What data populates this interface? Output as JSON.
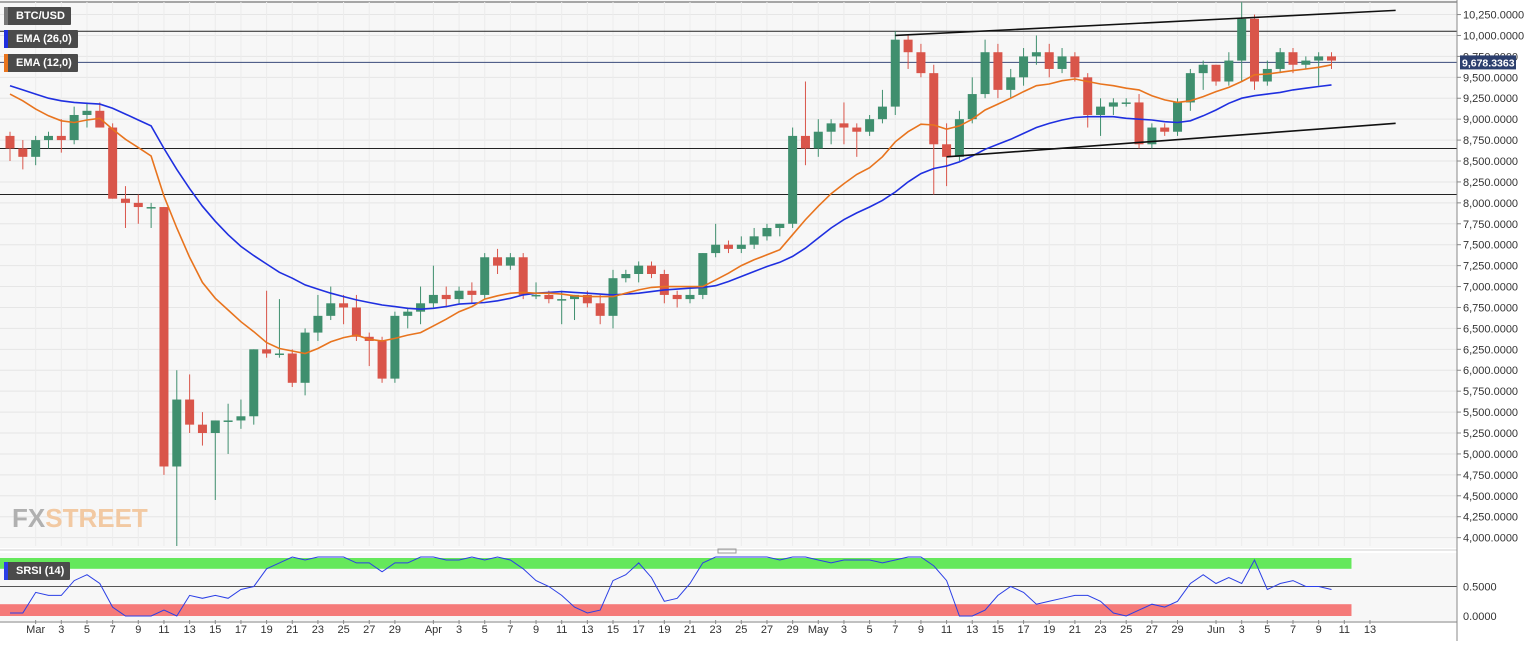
{
  "instrument": "BTC/USD",
  "indicators": {
    "ema_slow_label": "EMA (26,0)",
    "ema_fast_label": "EMA (12,0)",
    "srsi_label": "SRSI (14)",
    "ema_slow_color": "#1f2fe0",
    "ema_fast_color": "#e8741e"
  },
  "last_price_label": "9,678.3363",
  "watermark": {
    "fx": "FX",
    "street": "STREET"
  },
  "colors": {
    "bull": "#3f8f6e",
    "bear": "#d9554a",
    "srsi_overbought": "#65e85b",
    "srsi_oversold": "#f57a79",
    "srsi_line": "#2b3fe6",
    "price_tag": "#2c3f6e"
  },
  "chart_data": {
    "type": "candlestick",
    "y_axis": {
      "min": 3900,
      "max": 10400,
      "ticks": [
        4000,
        4250,
        4500,
        4750,
        5000,
        5250,
        5500,
        5750,
        6000,
        6250,
        6500,
        6750,
        7000,
        7250,
        7500,
        7750,
        8000,
        8250,
        8500,
        8750,
        9000,
        9250,
        9500,
        9750,
        10000,
        10250
      ],
      "tick_labels": [
        "4,000.0000",
        "4,250.0000",
        "4,500.0000",
        "4,750.0000",
        "5,000.0000",
        "5,250.0000",
        "5,500.0000",
        "5,750.0000",
        "6,000.0000",
        "6,250.0000",
        "6,500.0000",
        "6,750.0000",
        "7,000.0000",
        "7,250.0000",
        "7,500.0000",
        "7,750.0000",
        "8,000.0000",
        "8,250.0000",
        "8,500.0000",
        "8,750.0000",
        "9,000.0000",
        "9,250.0000",
        "9,500.0000",
        "9,750.0000",
        "10,000.0000",
        "10,250.0000"
      ]
    },
    "x_axis": {
      "first_date": "2020-02-28",
      "labels": [
        {
          "day": 2,
          "text": "Mar"
        },
        {
          "day": 4,
          "text": "3"
        },
        {
          "day": 6,
          "text": "5"
        },
        {
          "day": 8,
          "text": "7"
        },
        {
          "day": 10,
          "text": "9"
        },
        {
          "day": 12,
          "text": "11"
        },
        {
          "day": 14,
          "text": "13"
        },
        {
          "day": 16,
          "text": "15"
        },
        {
          "day": 18,
          "text": "17"
        },
        {
          "day": 20,
          "text": "19"
        },
        {
          "day": 22,
          "text": "21"
        },
        {
          "day": 24,
          "text": "23"
        },
        {
          "day": 26,
          "text": "25"
        },
        {
          "day": 28,
          "text": "27"
        },
        {
          "day": 30,
          "text": "29"
        },
        {
          "day": 33,
          "text": "Apr"
        },
        {
          "day": 35,
          "text": "3"
        },
        {
          "day": 37,
          "text": "5"
        },
        {
          "day": 39,
          "text": "7"
        },
        {
          "day": 41,
          "text": "9"
        },
        {
          "day": 43,
          "text": "11"
        },
        {
          "day": 45,
          "text": "13"
        },
        {
          "day": 47,
          "text": "15"
        },
        {
          "day": 49,
          "text": "17"
        },
        {
          "day": 51,
          "text": "19"
        },
        {
          "day": 53,
          "text": "21"
        },
        {
          "day": 55,
          "text": "23"
        },
        {
          "day": 57,
          "text": "25"
        },
        {
          "day": 59,
          "text": "27"
        },
        {
          "day": 61,
          "text": "29"
        },
        {
          "day": 63,
          "text": "May"
        },
        {
          "day": 65,
          "text": "3"
        },
        {
          "day": 67,
          "text": "5"
        },
        {
          "day": 69,
          "text": "7"
        },
        {
          "day": 71,
          "text": "9"
        },
        {
          "day": 73,
          "text": "11"
        },
        {
          "day": 75,
          "text": "13"
        },
        {
          "day": 77,
          "text": "15"
        },
        {
          "day": 79,
          "text": "17"
        },
        {
          "day": 81,
          "text": "19"
        },
        {
          "day": 83,
          "text": "21"
        },
        {
          "day": 85,
          "text": "23"
        },
        {
          "day": 87,
          "text": "25"
        },
        {
          "day": 89,
          "text": "27"
        },
        {
          "day": 91,
          "text": "29"
        },
        {
          "day": 94,
          "text": "Jun"
        },
        {
          "day": 96,
          "text": "3"
        },
        {
          "day": 98,
          "text": "5"
        },
        {
          "day": 100,
          "text": "7"
        },
        {
          "day": 102,
          "text": "9"
        },
        {
          "day": 104,
          "text": "11"
        },
        {
          "day": 106,
          "text": "13"
        }
      ]
    },
    "candles": [
      [
        8800,
        8850,
        8500,
        8650
      ],
      [
        8650,
        8750,
        8400,
        8550
      ],
      [
        8550,
        8800,
        8450,
        8750
      ],
      [
        8750,
        8850,
        8650,
        8800
      ],
      [
        8800,
        9000,
        8600,
        8750
      ],
      [
        8750,
        9150,
        8700,
        9050
      ],
      [
        9050,
        9200,
        8900,
        9100
      ],
      [
        9100,
        9200,
        8900,
        8900
      ],
      [
        8900,
        8950,
        8050,
        8050
      ],
      [
        8050,
        8200,
        7700,
        8000
      ],
      [
        8000,
        8100,
        7750,
        7950
      ],
      [
        7950,
        8000,
        7700,
        7950
      ],
      [
        7950,
        7950,
        4750,
        4850
      ],
      [
        4850,
        6000,
        3900,
        5650
      ],
      [
        5650,
        5950,
        5250,
        5350
      ],
      [
        5350,
        5500,
        5100,
        5250
      ],
      [
        5250,
        5400,
        4450,
        5400
      ],
      [
        5400,
        5600,
        5000,
        5400
      ],
      [
        5400,
        5650,
        5300,
        5450
      ],
      [
        5450,
        6250,
        5350,
        6250
      ],
      [
        6250,
        6950,
        6150,
        6200
      ],
      [
        6200,
        6850,
        6150,
        6200
      ],
      [
        6200,
        6250,
        5800,
        5850
      ],
      [
        5850,
        6500,
        5700,
        6450
      ],
      [
        6450,
        6900,
        6350,
        6650
      ],
      [
        6650,
        7000,
        6600,
        6800
      ],
      [
        6800,
        6900,
        6550,
        6750
      ],
      [
        6750,
        6900,
        6350,
        6400
      ],
      [
        6400,
        6450,
        6050,
        6350
      ],
      [
        6350,
        6400,
        5850,
        5900
      ],
      [
        5900,
        6700,
        5850,
        6650
      ],
      [
        6650,
        6750,
        6500,
        6700
      ],
      [
        6700,
        7000,
        6550,
        6800
      ],
      [
        6800,
        7250,
        6750,
        6900
      ],
      [
        6900,
        7000,
        6750,
        6850
      ],
      [
        6850,
        7000,
        6800,
        6950
      ],
      [
        6950,
        7050,
        6800,
        6900
      ],
      [
        6900,
        7400,
        6850,
        7350
      ],
      [
        7350,
        7450,
        7150,
        7250
      ],
      [
        7250,
        7400,
        7200,
        7350
      ],
      [
        7350,
        7400,
        6850,
        6900
      ],
      [
        6900,
        7050,
        6850,
        6900
      ],
      [
        6900,
        6950,
        6800,
        6850
      ],
      [
        6850,
        6950,
        6550,
        6850
      ],
      [
        6850,
        6900,
        6600,
        6900
      ],
      [
        6900,
        6950,
        6750,
        6800
      ],
      [
        6800,
        6900,
        6550,
        6650
      ],
      [
        6650,
        7200,
        6500,
        7100
      ],
      [
        7100,
        7200,
        7050,
        7150
      ],
      [
        7150,
        7300,
        7050,
        7250
      ],
      [
        7250,
        7300,
        7100,
        7150
      ],
      [
        7150,
        7200,
        6800,
        6900
      ],
      [
        6900,
        6950,
        6750,
        6850
      ],
      [
        6850,
        7000,
        6800,
        6900
      ],
      [
        6900,
        7400,
        6850,
        7400
      ],
      [
        7400,
        7750,
        7350,
        7500
      ],
      [
        7500,
        7550,
        7400,
        7450
      ],
      [
        7450,
        7600,
        7400,
        7500
      ],
      [
        7500,
        7700,
        7450,
        7600
      ],
      [
        7600,
        7750,
        7550,
        7700
      ],
      [
        7700,
        7750,
        7600,
        7750
      ],
      [
        7750,
        8900,
        7700,
        8800
      ],
      [
        8800,
        9450,
        8450,
        8650
      ],
      [
        8650,
        9000,
        8550,
        8850
      ],
      [
        8850,
        9000,
        8700,
        8950
      ],
      [
        8950,
        9200,
        8700,
        8900
      ],
      [
        8900,
        8950,
        8550,
        8850
      ],
      [
        8850,
        9050,
        8800,
        9000
      ],
      [
        9000,
        9350,
        8950,
        9150
      ],
      [
        9150,
        10050,
        9050,
        9950
      ],
      [
        9950,
        10000,
        9600,
        9800
      ],
      [
        9800,
        9900,
        9500,
        9550
      ],
      [
        9550,
        9650,
        8100,
        8700
      ],
      [
        8700,
        8950,
        8200,
        8550
      ],
      [
        8550,
        9100,
        8500,
        9000
      ],
      [
        9000,
        9500,
        8950,
        9300
      ],
      [
        9300,
        9950,
        9250,
        9800
      ],
      [
        9800,
        9900,
        9250,
        9350
      ],
      [
        9350,
        9600,
        9250,
        9500
      ],
      [
        9500,
        9850,
        9400,
        9750
      ],
      [
        9750,
        10000,
        9650,
        9800
      ],
      [
        9800,
        9900,
        9500,
        9600
      ],
      [
        9600,
        9850,
        9550,
        9750
      ],
      [
        9750,
        9800,
        9450,
        9500
      ],
      [
        9500,
        9550,
        8900,
        9050
      ],
      [
        9050,
        9250,
        8800,
        9150
      ],
      [
        9150,
        9250,
        9050,
        9200
      ],
      [
        9200,
        9250,
        9150,
        9200
      ],
      [
        9200,
        9300,
        8650,
        8700
      ],
      [
        8700,
        8950,
        8650,
        8900
      ],
      [
        8900,
        8950,
        8800,
        8850
      ],
      [
        8850,
        9250,
        8800,
        9200
      ],
      [
        9200,
        9600,
        9100,
        9550
      ],
      [
        9550,
        9700,
        9350,
        9650
      ],
      [
        9650,
        9650,
        9400,
        9450
      ],
      [
        9450,
        9800,
        9400,
        9700
      ],
      [
        9700,
        10400,
        9450,
        10200
      ],
      [
        10200,
        10250,
        9350,
        9450
      ],
      [
        9450,
        9700,
        9400,
        9600
      ],
      [
        9600,
        9850,
        9550,
        9800
      ],
      [
        9800,
        9850,
        9550,
        9650
      ],
      [
        9650,
        9750,
        9600,
        9700
      ],
      [
        9700,
        9800,
        9400,
        9750
      ],
      [
        9750,
        9800,
        9600,
        9700
      ]
    ],
    "ema_fast": [
      9300,
      9220,
      9120,
      9040,
      8980,
      8960,
      8990,
      9010,
      8880,
      8760,
      8660,
      8560,
      8080,
      7700,
      7350,
      7050,
      6860,
      6720,
      6580,
      6460,
      6330,
      6260,
      6230,
      6200,
      6260,
      6340,
      6390,
      6420,
      6370,
      6350,
      6380,
      6420,
      6450,
      6530,
      6610,
      6700,
      6760,
      6850,
      6890,
      6920,
      6930,
      6920,
      6920,
      6910,
      6890,
      6880,
      6880,
      6880,
      6920,
      6960,
      6990,
      7000,
      7000,
      7000,
      7000,
      7080,
      7160,
      7250,
      7320,
      7380,
      7440,
      7620,
      7800,
      7960,
      8110,
      8230,
      8340,
      8420,
      8550,
      8730,
      8850,
      8940,
      8930,
      8880,
      8920,
      9000,
      9110,
      9180,
      9250,
      9330,
      9400,
      9420,
      9460,
      9480,
      9450,
      9420,
      9400,
      9370,
      9350,
      9280,
      9230,
      9200,
      9220,
      9270,
      9330,
      9380,
      9450,
      9530,
      9540,
      9560,
      9580,
      9600,
      9620,
      9650
    ],
    "ema_slow": [
      9400,
      9350,
      9300,
      9250,
      9220,
      9200,
      9190,
      9180,
      9130,
      9060,
      8990,
      8920,
      8650,
      8400,
      8170,
      7960,
      7780,
      7620,
      7480,
      7370,
      7270,
      7170,
      7100,
      7020,
      6970,
      6920,
      6880,
      6840,
      6810,
      6780,
      6760,
      6740,
      6730,
      6740,
      6760,
      6790,
      6800,
      6810,
      6830,
      6860,
      6900,
      6920,
      6930,
      6940,
      6930,
      6920,
      6910,
      6900,
      6910,
      6920,
      6940,
      6960,
      6970,
      6980,
      6990,
      7010,
      7060,
      7120,
      7180,
      7240,
      7290,
      7360,
      7460,
      7580,
      7700,
      7800,
      7880,
      7950,
      8030,
      8130,
      8250,
      8350,
      8410,
      8440,
      8490,
      8560,
      8640,
      8700,
      8760,
      8830,
      8900,
      8950,
      8990,
      9020,
      9030,
      9030,
      9030,
      9010,
      9000,
      8990,
      8970,
      8960,
      8980,
      9040,
      9110,
      9190,
      9250,
      9280,
      9300,
      9320,
      9350,
      9370,
      9390,
      9410
    ],
    "srsi": {
      "range": [
        0,
        1
      ],
      "overbought": 0.8,
      "oversold": 0.2,
      "tick_labels": [
        {
          "value": 0.5,
          "text": "0.5000"
        },
        {
          "value": 0.0,
          "text": "0.0000"
        }
      ],
      "values": [
        0.05,
        0.05,
        0.4,
        0.35,
        0.35,
        0.6,
        0.7,
        0.55,
        0.15,
        0.0,
        0.0,
        0.0,
        0.1,
        0.0,
        0.35,
        0.3,
        0.35,
        0.3,
        0.45,
        0.5,
        0.8,
        0.9,
        1.0,
        0.95,
        1.0,
        1.0,
        1.0,
        0.9,
        0.9,
        0.75,
        0.9,
        0.9,
        1.0,
        1.0,
        0.95,
        0.95,
        1.0,
        0.95,
        1.0,
        0.95,
        0.8,
        0.6,
        0.5,
        0.35,
        0.15,
        0.05,
        0.1,
        0.6,
        0.7,
        0.9,
        0.65,
        0.25,
        0.3,
        0.55,
        0.9,
        1.0,
        1.0,
        1.0,
        1.0,
        1.0,
        0.95,
        1.0,
        1.0,
        0.95,
        0.9,
        0.95,
        0.95,
        0.95,
        0.9,
        0.95,
        1.0,
        1.0,
        0.85,
        0.6,
        0.0,
        0.0,
        0.1,
        0.35,
        0.5,
        0.4,
        0.2,
        0.25,
        0.3,
        0.35,
        0.35,
        0.25,
        0.05,
        0.0,
        0.1,
        0.2,
        0.15,
        0.25,
        0.55,
        0.7,
        0.55,
        0.65,
        0.55,
        0.95,
        0.45,
        0.55,
        0.6,
        0.5,
        0.5,
        0.45
      ]
    },
    "horizontal_lines": [
      10050,
      9678.3363,
      8650,
      8100
    ],
    "trendlines": [
      {
        "from": [
          69,
          10000
        ],
        "to": [
          108,
          10300
        ]
      },
      {
        "from": [
          73,
          8550
        ],
        "to": [
          108,
          8950
        ]
      }
    ],
    "grid": true
  }
}
